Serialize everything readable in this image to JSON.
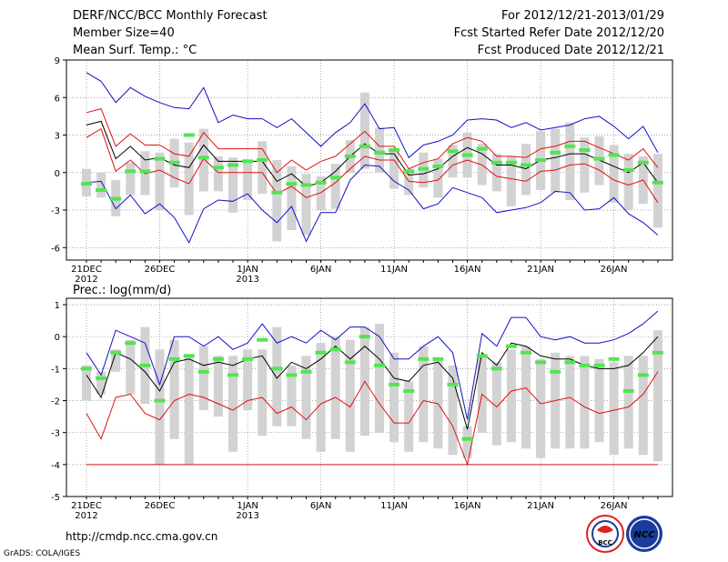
{
  "header": {
    "title": "DERF/NCC/BCC Monthly Forecast",
    "member_size": "Member Size=40",
    "top_variable": "Mean Surf. Temp.: °C",
    "period": "For 2012/12/21-2013/01/29",
    "fcst_started": "Fcst Started Refer Date 2012/12/20",
    "fcst_produced": "Fcst Produced Date 2012/12/21"
  },
  "footer": {
    "url": "http://cmdp.ncc.cma.gov.cn",
    "grads": "GrADS: COLA/IGES",
    "logo_bcc_text": "BCC",
    "logo_ncc_text": "NCC"
  },
  "colors": {
    "box": "#d2d2d2",
    "obs": "#52e552",
    "mean": "#000000",
    "pct": "#e01010",
    "ext": "#1010c8",
    "grid": "#8a8a8a"
  },
  "chart_data": [
    {
      "type": "line",
      "title": "Mean Surf. Temp.: °C",
      "x": [
        0,
        1,
        2,
        3,
        4,
        5,
        6,
        7,
        8,
        9,
        10,
        11,
        12,
        13,
        14,
        15,
        16,
        17,
        18,
        19,
        20,
        21,
        22,
        23,
        24,
        25,
        26,
        27,
        28,
        29,
        30,
        31,
        32,
        33,
        34,
        35,
        36,
        37,
        38,
        39
      ],
      "xticks": [
        {
          "day": 0,
          "label": "21DEC",
          "sub": "2012"
        },
        {
          "day": 5,
          "label": "26DEC",
          "sub": ""
        },
        {
          "day": 11,
          "label": "1JAN",
          "sub": "2013"
        },
        {
          "day": 16,
          "label": "6JAN",
          "sub": ""
        },
        {
          "day": 21,
          "label": "11JAN",
          "sub": ""
        },
        {
          "day": 26,
          "label": "16JAN",
          "sub": ""
        },
        {
          "day": 31,
          "label": "21JAN",
          "sub": ""
        },
        {
          "day": 36,
          "label": "26JAN",
          "sub": ""
        }
      ],
      "ylim": [
        -7,
        9
      ],
      "yticks": [
        -6,
        -3,
        0,
        3,
        6,
        9
      ],
      "floor": null,
      "series": [
        {
          "name": "max",
          "values": [
            8.0,
            7.3,
            5.6,
            6.8,
            6.1,
            5.6,
            5.2,
            5.1,
            6.8,
            4.0,
            4.6,
            4.3,
            4.3,
            3.6,
            4.3,
            3.2,
            2.1,
            3.2,
            4.0,
            5.5,
            3.5,
            3.6,
            1.2,
            2.2,
            2.5,
            3.0,
            4.2,
            4.3,
            4.2,
            3.6,
            4.0,
            3.4,
            3.6,
            3.8,
            4.3,
            4.5,
            3.7,
            2.7,
            3.7,
            1.6
          ]
        },
        {
          "name": "p90",
          "values": [
            4.8,
            5.1,
            2.1,
            3.1,
            2.2,
            2.2,
            1.5,
            1.3,
            3.2,
            1.9,
            1.9,
            1.9,
            1.9,
            0.0,
            1.0,
            0.2,
            0.9,
            1.3,
            2.3,
            3.3,
            2.1,
            2.1,
            0.3,
            0.8,
            1.1,
            2.3,
            2.8,
            2.5,
            1.3,
            1.3,
            1.2,
            1.9,
            2.1,
            2.5,
            2.5,
            2.0,
            1.5,
            1.0,
            1.9,
            0.4
          ]
        },
        {
          "name": "mean",
          "values": [
            3.8,
            4.1,
            1.1,
            2.1,
            1.0,
            1.2,
            0.6,
            0.4,
            2.2,
            0.9,
            0.9,
            0.9,
            0.9,
            -0.7,
            -0.1,
            -1.1,
            -0.8,
            0.1,
            1.3,
            2.3,
            1.5,
            1.5,
            -0.2,
            -0.1,
            0.3,
            1.3,
            2.0,
            1.5,
            0.6,
            0.6,
            0.3,
            1.0,
            1.2,
            1.5,
            1.5,
            1.0,
            0.5,
            0.0,
            0.8,
            -0.8
          ]
        },
        {
          "name": "p10",
          "values": [
            2.8,
            3.5,
            0.1,
            1.0,
            -0.1,
            0.2,
            -0.4,
            -0.9,
            1.1,
            0.0,
            0.0,
            0.0,
            0.0,
            -1.7,
            -1.1,
            -2.0,
            -1.6,
            -0.8,
            0.3,
            1.3,
            1.0,
            1.0,
            -0.7,
            -0.8,
            -0.6,
            0.6,
            1.0,
            0.6,
            -0.3,
            -0.5,
            -0.7,
            0.1,
            0.2,
            0.6,
            0.7,
            0.2,
            -0.6,
            -1.0,
            -0.6,
            -2.4
          ]
        },
        {
          "name": "min",
          "values": [
            -0.8,
            -0.7,
            -2.9,
            -1.8,
            -3.3,
            -2.5,
            -3.6,
            -5.6,
            -2.9,
            -2.2,
            -2.3,
            -1.7,
            -3.0,
            -4.0,
            -2.7,
            -5.5,
            -3.2,
            -3.2,
            -0.6,
            0.6,
            0.5,
            -0.7,
            -1.4,
            -2.9,
            -2.5,
            -1.2,
            -1.6,
            -2.0,
            -3.2,
            -3.0,
            -2.8,
            -2.4,
            -1.5,
            -1.6,
            -3.0,
            -2.9,
            -2.0,
            -3.3,
            -4.0,
            -5.0
          ]
        }
      ],
      "box_ranges": [
        [
          -1.9,
          0.3
        ],
        [
          -2.0,
          0.0
        ],
        [
          -3.5,
          -0.6
        ],
        [
          -1.8,
          0.8
        ],
        [
          -1.8,
          1.7
        ],
        [
          -3.0,
          1.6
        ],
        [
          -1.2,
          2.7
        ],
        [
          -3.4,
          2.4
        ],
        [
          -1.5,
          3.5
        ],
        [
          -1.5,
          1.3
        ],
        [
          -3.2,
          1.2
        ],
        [
          -2.2,
          0.9
        ],
        [
          -1.7,
          2.5
        ],
        [
          -5.5,
          1.0
        ],
        [
          -4.6,
          0.5
        ],
        [
          -5.0,
          -0.1
        ],
        [
          -3.0,
          -0.3
        ],
        [
          -2.9,
          0.7
        ],
        [
          0.0,
          2.6
        ],
        [
          0.3,
          6.4
        ],
        [
          0.0,
          3.6
        ],
        [
          -1.3,
          1.8
        ],
        [
          -1.8,
          0.3
        ],
        [
          -1.2,
          1.6
        ],
        [
          -2.0,
          1.1
        ],
        [
          -0.4,
          2.2
        ],
        [
          -0.4,
          3.2
        ],
        [
          -1.0,
          2.3
        ],
        [
          -1.5,
          1.5
        ],
        [
          -2.7,
          1.3
        ],
        [
          -1.8,
          2.3
        ],
        [
          -1.4,
          3.3
        ],
        [
          -1.6,
          3.5
        ],
        [
          -2.2,
          4.0
        ],
        [
          -1.6,
          2.8
        ],
        [
          -1.0,
          2.9
        ],
        [
          -2.4,
          2.2
        ],
        [
          -3.0,
          1.5
        ],
        [
          -2.5,
          1.3
        ],
        [
          -4.4,
          1.5
        ]
      ],
      "observed": [
        -0.9,
        -1.4,
        -2.1,
        0.1,
        0.1,
        1.1,
        0.8,
        3.0,
        1.2,
        0.4,
        0.6,
        0.9,
        1.0,
        -1.6,
        -0.9,
        -1.0,
        -0.8,
        -0.4,
        1.3,
        2.1,
        1.6,
        1.8,
        0.1,
        0.3,
        0.5,
        1.7,
        1.4,
        1.9,
        0.8,
        0.8,
        0.6,
        1.0,
        1.6,
        2.1,
        1.8,
        1.1,
        1.4,
        0.2,
        0.8,
        -0.8
      ]
    },
    {
      "type": "line",
      "title": "Prec.: log(mm/d)",
      "x": [
        0,
        1,
        2,
        3,
        4,
        5,
        6,
        7,
        8,
        9,
        10,
        11,
        12,
        13,
        14,
        15,
        16,
        17,
        18,
        19,
        20,
        21,
        22,
        23,
        24,
        25,
        26,
        27,
        28,
        29,
        30,
        31,
        32,
        33,
        34,
        35,
        36,
        37,
        38,
        39
      ],
      "xticks": [
        {
          "day": 0,
          "label": "21DEC",
          "sub": "2012"
        },
        {
          "day": 5,
          "label": "26DEC",
          "sub": ""
        },
        {
          "day": 11,
          "label": "1JAN",
          "sub": "2013"
        },
        {
          "day": 16,
          "label": "6JAN",
          "sub": ""
        },
        {
          "day": 21,
          "label": "11JAN",
          "sub": ""
        },
        {
          "day": 26,
          "label": "16JAN",
          "sub": ""
        },
        {
          "day": 31,
          "label": "21JAN",
          "sub": ""
        },
        {
          "day": 36,
          "label": "26JAN",
          "sub": ""
        }
      ],
      "ylim": [
        -5,
        1.2
      ],
      "yticks": [
        -5,
        -4,
        -3,
        -2,
        -1,
        0,
        1
      ],
      "floor": -4,
      "series": [
        {
          "name": "max",
          "values": [
            -0.5,
            -1.2,
            0.2,
            0.0,
            -0.2,
            -1.5,
            0.0,
            0.0,
            -0.3,
            0.0,
            -0.4,
            -0.2,
            0.4,
            -0.2,
            0.0,
            -0.2,
            0.2,
            -0.1,
            0.3,
            0.3,
            0.0,
            -0.7,
            -0.7,
            -0.3,
            0.0,
            -0.5,
            -2.6,
            0.1,
            -0.3,
            0.6,
            0.6,
            0.0,
            -0.1,
            0.0,
            -0.2,
            -0.2,
            -0.1,
            0.1,
            0.4,
            0.8
          ]
        },
        {
          "name": "mean",
          "values": [
            -1.2,
            -1.9,
            -0.5,
            -0.7,
            -1.1,
            -1.7,
            -0.8,
            -0.7,
            -0.9,
            -0.8,
            -0.9,
            -0.7,
            -0.6,
            -1.3,
            -0.8,
            -1.0,
            -0.7,
            -0.3,
            -0.7,
            -0.3,
            -0.7,
            -1.3,
            -1.4,
            -0.9,
            -0.8,
            -1.3,
            -2.9,
            -0.5,
            -0.9,
            -0.2,
            -0.3,
            -0.6,
            -0.7,
            -0.7,
            -0.9,
            -1.0,
            -1.0,
            -0.9,
            -0.5,
            0.0
          ]
        },
        {
          "name": "p10",
          "values": [
            -2.4,
            -3.2,
            -1.9,
            -1.8,
            -2.4,
            -2.6,
            -2.0,
            -1.8,
            -1.9,
            -2.1,
            -2.3,
            -2.0,
            -1.9,
            -2.4,
            -2.2,
            -2.6,
            -2.1,
            -1.9,
            -2.2,
            -1.4,
            -2.1,
            -2.7,
            -2.7,
            -2.0,
            -2.1,
            -2.8,
            -4.0,
            -1.8,
            -2.2,
            -1.7,
            -1.6,
            -2.1,
            -2.0,
            -1.9,
            -2.2,
            -2.4,
            -2.3,
            -2.2,
            -1.8,
            -1.1
          ]
        },
        {
          "name": "min",
          "values": [
            -4,
            -4,
            -4,
            -4,
            -4,
            -4,
            -4,
            -4,
            -4,
            -4,
            -4,
            -4,
            -4,
            -4,
            -4,
            -4,
            -4,
            -4,
            -4,
            -4,
            -4,
            -4,
            -4,
            -4,
            -4,
            -4,
            -4,
            -4,
            -4,
            -4,
            -4,
            -4,
            -4,
            -4,
            -4,
            -4,
            -4,
            -4,
            -4,
            -4
          ]
        }
      ],
      "box_ranges": [
        [
          -2.0,
          -0.9
        ],
        [
          -1.8,
          -1.1
        ],
        [
          -1.1,
          -0.4
        ],
        [
          -1.8,
          -0.1
        ],
        [
          -2.1,
          0.3
        ],
        [
          -4.0,
          -0.4
        ],
        [
          -3.2,
          -0.1
        ],
        [
          -4.0,
          -0.6
        ],
        [
          -2.3,
          -0.3
        ],
        [
          -2.5,
          -0.6
        ],
        [
          -3.6,
          -0.6
        ],
        [
          -2.3,
          -0.4
        ],
        [
          -3.1,
          -0.4
        ],
        [
          -2.8,
          0.3
        ],
        [
          -2.8,
          -0.9
        ],
        [
          -3.2,
          -0.6
        ],
        [
          -3.6,
          -0.2
        ],
        [
          -3.2,
          0.0
        ],
        [
          -3.6,
          -0.1
        ],
        [
          -3.1,
          0.3
        ],
        [
          -3.0,
          0.4
        ],
        [
          -3.3,
          -0.5
        ],
        [
          -3.6,
          -1.4
        ],
        [
          -3.3,
          -0.3
        ],
        [
          -3.5,
          -0.7
        ],
        [
          -3.7,
          -0.9
        ],
        [
          -3.8,
          -2.8
        ],
        [
          -3.0,
          -0.6
        ],
        [
          -3.4,
          -0.8
        ],
        [
          -3.3,
          -0.4
        ],
        [
          -3.5,
          -0.3
        ],
        [
          -3.8,
          -0.7
        ],
        [
          -3.5,
          -0.5
        ],
        [
          -3.5,
          -0.6
        ],
        [
          -3.5,
          -0.6
        ],
        [
          -3.3,
          -0.7
        ],
        [
          -3.7,
          -0.8
        ],
        [
          -3.5,
          -0.6
        ],
        [
          -3.7,
          -0.6
        ],
        [
          -3.9,
          0.2
        ]
      ],
      "observed": [
        -1.0,
        -1.3,
        -0.5,
        -0.2,
        -0.9,
        -2.0,
        -0.7,
        -0.6,
        -1.1,
        -0.7,
        -1.2,
        -0.7,
        -0.1,
        -1.0,
        -1.2,
        -1.1,
        -0.5,
        -0.4,
        -0.8,
        0.0,
        -0.9,
        -1.5,
        -1.7,
        -0.7,
        -0.7,
        -1.5,
        -3.2,
        -0.6,
        -1.0,
        -0.3,
        -0.5,
        -0.8,
        -1.1,
        -0.8,
        -0.9,
        -0.9,
        -0.7,
        -1.7,
        -1.2,
        -0.5
      ]
    }
  ]
}
